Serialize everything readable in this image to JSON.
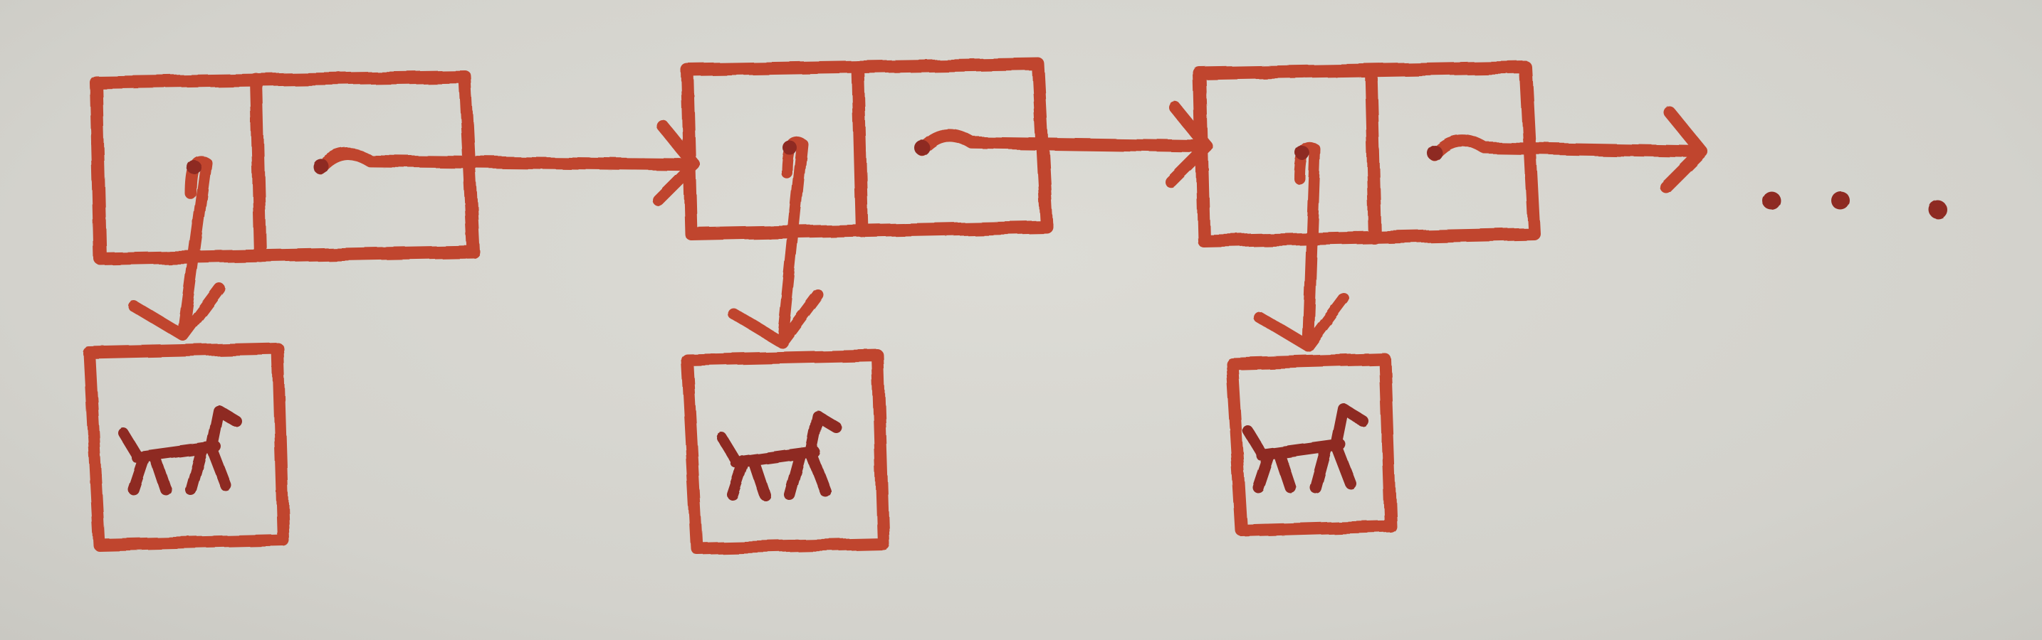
{
  "diagram": {
    "kind": "linked-list",
    "ink_color": "#c0452f",
    "ink_dark_color": "#8e2a22",
    "paper_color": "#d6d5cf",
    "nodes": [
      {
        "fields": [
          "data",
          "next"
        ],
        "data_points_to": "dog-picture",
        "next_points_to": "node-2"
      },
      {
        "fields": [
          "data",
          "next"
        ],
        "data_points_to": "dog-picture",
        "next_points_to": "node-3"
      },
      {
        "fields": [
          "data",
          "next"
        ],
        "data_points_to": "dog-picture",
        "next_points_to": "continuation"
      }
    ],
    "continuation_mark": "ellipsis-dots",
    "data_icon": "dog-icon"
  }
}
